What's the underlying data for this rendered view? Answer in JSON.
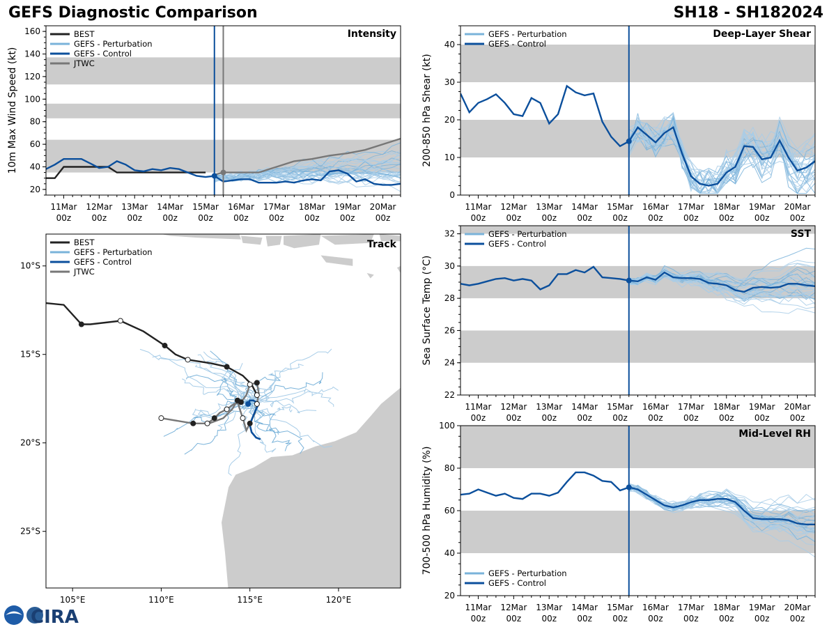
{
  "header": {
    "title": "GEFS Diagnostic Comparison",
    "storm": "SH18 - SH182024"
  },
  "logo": {
    "text": "CIRA"
  },
  "colors": {
    "best": "#222222",
    "perturbation": "#7ab3da",
    "perturbation_light": "#a8cde8",
    "control": "#0b4f9c",
    "jtwc": "#777777",
    "band": "#cccccc",
    "land": "#cccccc",
    "vline": "#0b4f9c"
  },
  "time_ticks": {
    "days": [
      "11Mar",
      "12Mar",
      "13Mar",
      "14Mar",
      "15Mar",
      "16Mar",
      "17Mar",
      "18Mar",
      "19Mar",
      "20Mar"
    ],
    "hours": [
      "00z",
      "00z",
      "00z",
      "00z",
      "00z",
      "00z",
      "00z",
      "00z",
      "00z",
      "00z"
    ],
    "day_values": [
      1,
      2,
      3,
      4,
      5,
      6,
      7,
      8,
      9,
      10
    ],
    "xlim": [
      0.5,
      10.5
    ],
    "init_time": 5.25
  },
  "chart_data": [
    {
      "id": "intensity",
      "type": "line",
      "label": "Intensity",
      "ylabel": "10m Max Wind Speed (kt)",
      "ylim": [
        15,
        165
      ],
      "yticks": [
        20,
        40,
        60,
        80,
        100,
        120,
        140,
        160
      ],
      "bands": [
        [
          35,
          64
        ],
        [
          83,
          96
        ],
        [
          113,
          137
        ]
      ],
      "jtwc_vline": 5.5,
      "legend": [
        "BEST",
        "GEFS - Perturbation",
        "GEFS - Control",
        "JTWC"
      ],
      "series": [
        {
          "name": "BEST",
          "x": [
            0.5,
            0.75,
            1.0,
            1.25,
            1.5,
            1.75,
            2.0,
            2.25,
            2.5,
            2.75,
            3.0,
            3.25,
            3.5,
            3.75,
            4.0,
            4.25,
            4.5,
            4.75,
            5.0
          ],
          "y": [
            30,
            30,
            40,
            40,
            40,
            40,
            40,
            40,
            35,
            35,
            35,
            35,
            35,
            35,
            35,
            35,
            35,
            35,
            35
          ]
        },
        {
          "name": "GEFS - Control",
          "x": [
            0.5,
            0.75,
            1.0,
            1.25,
            1.5,
            1.75,
            2.0,
            2.25,
            2.5,
            2.75,
            3.0,
            3.25,
            3.5,
            3.75,
            4.0,
            4.25,
            4.5,
            4.75,
            5.0,
            5.25,
            5.5,
            5.75,
            6.0,
            6.25,
            6.5,
            6.75,
            7.0,
            7.25,
            7.5,
            7.75,
            8.0,
            8.25,
            8.5,
            8.75,
            9.0,
            9.25,
            9.5,
            9.75,
            10.0,
            10.25,
            10.5
          ],
          "y": [
            38,
            42,
            47,
            47,
            47,
            43,
            39,
            40,
            45,
            42,
            37,
            36,
            38,
            37,
            39,
            38,
            35,
            32,
            31,
            32,
            27,
            28,
            29,
            29,
            26,
            26,
            26,
            27,
            26,
            28,
            29,
            28,
            36,
            37,
            34,
            27,
            29,
            25,
            24,
            24,
            25
          ]
        },
        {
          "name": "JTWC",
          "x": [
            5.25,
            5.5,
            6.0,
            6.5,
            7.0,
            7.5,
            8.0,
            8.5,
            9.0,
            9.5,
            10.0,
            10.5
          ],
          "y": [
            33,
            35,
            35,
            35,
            40,
            45,
            47,
            50,
            52,
            55,
            60,
            65
          ]
        }
      ]
    },
    {
      "id": "shear",
      "type": "line",
      "label": "Deep-Layer Shear",
      "ylabel": "200-850 hPa Shear (kt)",
      "ylim": [
        0,
        45
      ],
      "yticks": [
        0,
        10,
        20,
        30,
        40
      ],
      "bands": [
        [
          10,
          20
        ],
        [
          30,
          40
        ]
      ],
      "legend": [
        "GEFS - Perturbation",
        "GEFS - Control"
      ],
      "series": [
        {
          "name": "GEFS - Control",
          "x": [
            0.5,
            0.75,
            1.0,
            1.25,
            1.5,
            1.75,
            2.0,
            2.25,
            2.5,
            2.75,
            3.0,
            3.25,
            3.5,
            3.75,
            4.0,
            4.25,
            4.5,
            4.75,
            5.0,
            5.25,
            5.5,
            5.75,
            6.0,
            6.25,
            6.5,
            6.75,
            7.0,
            7.25,
            7.5,
            7.75,
            8.0,
            8.25,
            8.5,
            8.75,
            9.0,
            9.25,
            9.5,
            9.75,
            10.0,
            10.25,
            10.5
          ],
          "y": [
            27,
            22,
            24.5,
            25.5,
            26.8,
            24.5,
            21.5,
            21,
            25.8,
            24.5,
            19,
            21.5,
            29,
            27.3,
            26.5,
            27,
            19.5,
            15.5,
            13,
            14.3,
            18,
            16,
            14,
            16.5,
            18,
            11,
            5,
            3,
            2.5,
            3,
            6,
            7.5,
            13,
            12.8,
            9.5,
            10,
            14.5,
            10,
            6.5,
            7.3,
            9
          ]
        }
      ]
    },
    {
      "id": "sst",
      "type": "line",
      "label": "SST",
      "ylabel": "Sea Surface Temp (°C)",
      "ylim": [
        22,
        32.5
      ],
      "yticks": [
        22,
        24,
        26,
        28,
        30,
        32
      ],
      "bands": [
        [
          24,
          26
        ],
        [
          28,
          30
        ],
        [
          32,
          32.5
        ]
      ],
      "legend": [
        "GEFS - Perturbation",
        "GEFS - Control"
      ],
      "series": [
        {
          "name": "GEFS - Control",
          "x": [
            0.5,
            0.75,
            1.0,
            1.25,
            1.5,
            1.75,
            2.0,
            2.25,
            2.5,
            2.75,
            3.0,
            3.25,
            3.5,
            3.75,
            4.0,
            4.25,
            4.5,
            4.75,
            5.0,
            5.25,
            5.5,
            5.75,
            6.0,
            6.25,
            6.5,
            6.75,
            7.0,
            7.25,
            7.5,
            7.75,
            8.0,
            8.25,
            8.5,
            8.75,
            9.0,
            9.25,
            9.5,
            9.75,
            10.0,
            10.25,
            10.5
          ],
          "y": [
            28.9,
            28.8,
            28.9,
            29.05,
            29.2,
            29.25,
            29.1,
            29.2,
            29.1,
            28.55,
            28.8,
            29.5,
            29.5,
            29.75,
            29.6,
            29.95,
            29.3,
            29.25,
            29.2,
            29.1,
            29.05,
            29.3,
            29.15,
            29.6,
            29.3,
            29.25,
            29.25,
            29.2,
            28.95,
            28.9,
            28.8,
            28.5,
            28.4,
            28.65,
            28.7,
            28.65,
            28.7,
            28.9,
            28.9,
            28.8,
            28.75
          ]
        }
      ]
    },
    {
      "id": "rh",
      "type": "line",
      "label": "Mid-Level RH",
      "ylabel": "700-500 hPa Humidity (%)",
      "ylim": [
        20,
        100
      ],
      "yticks": [
        20,
        40,
        60,
        80,
        100
      ],
      "bands": [
        [
          40,
          60
        ],
        [
          80,
          100
        ]
      ],
      "legend": [
        "GEFS - Perturbation",
        "GEFS - Control"
      ],
      "series": [
        {
          "name": "GEFS - Control",
          "x": [
            0.5,
            0.75,
            1.0,
            1.25,
            1.5,
            1.75,
            2.0,
            2.25,
            2.5,
            2.75,
            3.0,
            3.25,
            3.5,
            3.75,
            4.0,
            4.25,
            4.5,
            4.75,
            5.0,
            5.25,
            5.5,
            5.75,
            6.0,
            6.25,
            6.5,
            6.75,
            7.0,
            7.25,
            7.5,
            7.75,
            8.0,
            8.25,
            8.5,
            8.75,
            9.0,
            9.25,
            9.5,
            9.75,
            10.0,
            10.25,
            10.5
          ],
          "y": [
            67.5,
            68,
            70,
            68.5,
            67,
            68,
            66,
            65.5,
            68,
            68,
            67,
            68.5,
            73.5,
            78,
            78,
            76.5,
            74,
            73.5,
            69.5,
            71,
            70,
            67.5,
            65,
            62.5,
            61.5,
            62.5,
            64,
            65,
            65,
            65.5,
            65.5,
            64,
            60,
            56.5,
            56,
            56,
            56,
            55.5,
            54,
            53.5,
            53.5
          ]
        }
      ]
    },
    {
      "id": "track",
      "type": "map",
      "label": "Track",
      "legend": [
        "BEST",
        "GEFS - Perturbation",
        "GEFS - Control",
        "JTWC"
      ],
      "lon_range": [
        103.5,
        123.5
      ],
      "lat_range": [
        -28.2,
        -8.2
      ],
      "lon_ticks": [
        105,
        110,
        115,
        120
      ],
      "lon_labels": [
        "105°E",
        "110°E",
        "115°E",
        "120°E"
      ],
      "lat_ticks": [
        -10,
        -15,
        -20,
        -25
      ],
      "lat_labels": [
        "10°S",
        "15°S",
        "20°S",
        "25°S"
      ],
      "best_track": {
        "lon": [
          103.5,
          104.5,
          105.5,
          106.0,
          107.7,
          109.0,
          110.2,
          110.8,
          111.5,
          112.8,
          113.7,
          114.6,
          115.1,
          115.4
        ],
        "lat": [
          -12.1,
          -12.2,
          -13.3,
          -13.3,
          -13.1,
          -13.7,
          -14.5,
          -15.0,
          -15.3,
          -15.5,
          -15.7,
          -16.2,
          -16.7,
          -17.3
        ]
      },
      "control_track": {
        "lon": [
          114.9,
          115.0,
          115.2,
          115.5,
          115.3,
          115.1,
          115.0,
          115.1,
          115.35,
          115.6
        ],
        "lat": [
          -17.8,
          -17.6,
          -17.6,
          -17.8,
          -18.2,
          -18.7,
          -19.0,
          -19.4,
          -19.7,
          -19.8
        ]
      },
      "jtwc_track": {
        "lon": [
          110.0,
          111.8,
          112.6,
          113.0,
          113.3,
          113.7,
          114.1,
          114.5,
          114.8,
          115.0,
          115.4,
          115.5,
          115.4,
          115.3,
          115.0,
          114.8,
          114.6,
          114.4,
          114.3,
          114.0,
          113.5,
          112.7,
          111.8,
          110.0
        ],
        "lat": [
          -18.6,
          -18.9,
          -18.9,
          -18.6,
          -18.3,
          -18.1,
          -17.8,
          -17.7,
          -17.3,
          -16.7,
          -16.6,
          -17.2,
          -17.8,
          -18.3,
          -18.9,
          -19.3,
          -18.6,
          -18.0,
          -17.6,
          -18.1,
          -18.6,
          -18.9,
          -18.9,
          -18.6
        ]
      }
    }
  ]
}
